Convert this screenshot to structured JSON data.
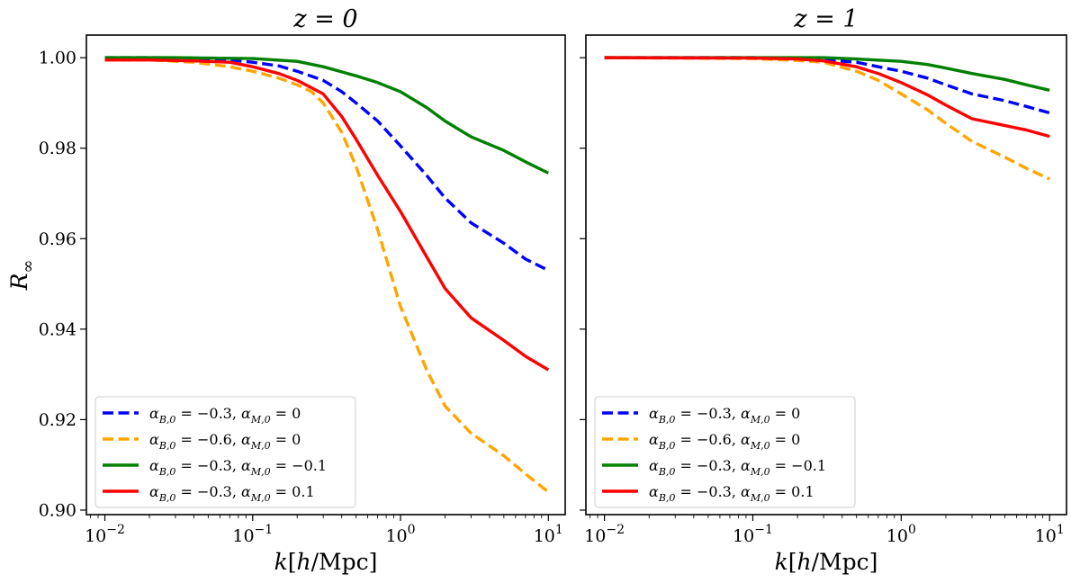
{
  "chart_data": [
    {
      "type": "line",
      "title": "z = 0",
      "xlabel": "k[h/Mpc]",
      "ylabel": "R∞",
      "xscale": "log",
      "xlim": [
        0.0075,
        13
      ],
      "ylim": [
        0.899,
        1.005
      ],
      "xticks": [
        {
          "value": 0.01,
          "base": "10",
          "exp": "−2"
        },
        {
          "value": 0.1,
          "base": "10",
          "exp": "−1"
        },
        {
          "value": 1,
          "base": "10",
          "exp": "0"
        },
        {
          "value": 10,
          "base": "10",
          "exp": "1"
        }
      ],
      "yticks": [
        {
          "value": 0.9,
          "label": "0.90"
        },
        {
          "value": 0.92,
          "label": "0.92"
        },
        {
          "value": 0.94,
          "label": "0.94"
        },
        {
          "value": 0.96,
          "label": "0.96"
        },
        {
          "value": 0.98,
          "label": "0.98"
        },
        {
          "value": 1.0,
          "label": "1.00"
        }
      ],
      "legend_position": "lower-left",
      "series": [
        {
          "name": "αB,0 = −0.3, αM,0 = 0",
          "color": "#0000ff",
          "dash": "dashed",
          "x": [
            0.01,
            0.02,
            0.04,
            0.07,
            0.1,
            0.15,
            0.2,
            0.3,
            0.4,
            0.5,
            0.7,
            1.0,
            1.5,
            2.0,
            3.0,
            5.0,
            7.0,
            10.0
          ],
          "y": [
            1.0,
            1.0,
            0.9999,
            0.9995,
            0.999,
            0.9982,
            0.997,
            0.995,
            0.9925,
            0.99,
            0.986,
            0.9805,
            0.974,
            0.969,
            0.9635,
            0.959,
            0.9555,
            0.953
          ]
        },
        {
          "name": "αB,0 = −0.6, αM,0 = 0",
          "color": "#ffa500",
          "dash": "dashed",
          "x": [
            0.01,
            0.02,
            0.04,
            0.07,
            0.1,
            0.15,
            0.2,
            0.25,
            0.3,
            0.4,
            0.5,
            0.7,
            1.0,
            1.5,
            2.0,
            3.0,
            5.0,
            7.0,
            10.0
          ],
          "y": [
            0.9995,
            0.9995,
            0.999,
            0.998,
            0.997,
            0.9955,
            0.994,
            0.9925,
            0.99,
            0.9835,
            0.976,
            0.962,
            0.945,
            0.931,
            0.923,
            0.917,
            0.912,
            0.908,
            0.904
          ]
        },
        {
          "name": "αB,0 = −0.3, αM,0 = −0.1",
          "color": "#008000",
          "dash": "solid",
          "x": [
            0.01,
            0.03,
            0.1,
            0.2,
            0.3,
            0.5,
            0.7,
            1.0,
            1.5,
            2.0,
            3.0,
            5.0,
            7.0,
            10.0
          ],
          "y": [
            1.0,
            1.0,
            0.9998,
            0.9992,
            0.998,
            0.996,
            0.9945,
            0.9925,
            0.989,
            0.986,
            0.9825,
            0.9795,
            0.977,
            0.9745
          ]
        },
        {
          "name": "αB,0 = −0.3, αM,0 = 0.1",
          "color": "#ff0000",
          "dash": "solid",
          "x": [
            0.01,
            0.02,
            0.04,
            0.07,
            0.1,
            0.15,
            0.2,
            0.3,
            0.4,
            0.5,
            0.7,
            1.0,
            1.5,
            2.0,
            3.0,
            5.0,
            7.0,
            10.0
          ],
          "y": [
            0.9995,
            0.9995,
            0.9993,
            0.999,
            0.998,
            0.9965,
            0.995,
            0.992,
            0.987,
            0.982,
            0.974,
            0.966,
            0.956,
            0.949,
            0.9425,
            0.9375,
            0.934,
            0.931
          ]
        }
      ]
    },
    {
      "type": "line",
      "title": "z = 1",
      "xlabel": "k[h/Mpc]",
      "ylabel": "",
      "xscale": "log",
      "xlim": [
        0.0075,
        13
      ],
      "ylim": [
        0.899,
        1.005
      ],
      "xticks": [
        {
          "value": 0.01,
          "base": "10",
          "exp": "−2"
        },
        {
          "value": 0.1,
          "base": "10",
          "exp": "−1"
        },
        {
          "value": 1,
          "base": "10",
          "exp": "0"
        },
        {
          "value": 10,
          "base": "10",
          "exp": "1"
        }
      ],
      "yticks": [
        {
          "value": 0.9,
          "label": ""
        },
        {
          "value": 0.92,
          "label": ""
        },
        {
          "value": 0.94,
          "label": ""
        },
        {
          "value": 0.96,
          "label": ""
        },
        {
          "value": 0.98,
          "label": ""
        },
        {
          "value": 1.0,
          "label": ""
        }
      ],
      "legend_position": "lower-left",
      "series": [
        {
          "name": "αB,0 = −0.3, αM,0 = 0",
          "color": "#0000ff",
          "dash": "dashed",
          "x": [
            0.01,
            0.1,
            0.3,
            0.5,
            0.7,
            1.0,
            1.5,
            2.0,
            3.0,
            5.0,
            7.0,
            10.0
          ],
          "y": [
            1.0,
            1.0,
            0.9995,
            0.999,
            0.998,
            0.997,
            0.9955,
            0.994,
            0.992,
            0.9905,
            0.9892,
            0.9878
          ]
        },
        {
          "name": "αB,0 = −0.6, αM,0 = 0",
          "color": "#ffa500",
          "dash": "dashed",
          "x": [
            0.01,
            0.1,
            0.2,
            0.3,
            0.5,
            0.7,
            1.0,
            1.5,
            2.0,
            3.0,
            5.0,
            7.0,
            10.0
          ],
          "y": [
            1.0,
            0.9998,
            0.9994,
            0.999,
            0.997,
            0.995,
            0.992,
            0.9885,
            0.9855,
            0.9815,
            0.978,
            0.9755,
            0.9732
          ]
        },
        {
          "name": "αB,0 = −0.3, αM,0 = −0.1",
          "color": "#008000",
          "dash": "solid",
          "x": [
            0.01,
            0.1,
            0.3,
            0.5,
            1.0,
            1.5,
            2.0,
            3.0,
            5.0,
            7.0,
            10.0
          ],
          "y": [
            1.0,
            1.0,
            1.0,
            0.9997,
            0.9992,
            0.9985,
            0.9977,
            0.9965,
            0.9952,
            0.994,
            0.9928
          ]
        },
        {
          "name": "αB,0 = −0.3, αM,0 = 0.1",
          "color": "#ff0000",
          "dash": "solid",
          "x": [
            0.01,
            0.1,
            0.2,
            0.3,
            0.5,
            0.7,
            1.0,
            1.5,
            2.0,
            3.0,
            5.0,
            7.0,
            10.0
          ],
          "y": [
            1.0,
            0.9999,
            0.9997,
            0.9993,
            0.998,
            0.9965,
            0.9945,
            0.9918,
            0.9895,
            0.9865,
            0.985,
            0.984,
            0.9826
          ]
        }
      ]
    }
  ]
}
